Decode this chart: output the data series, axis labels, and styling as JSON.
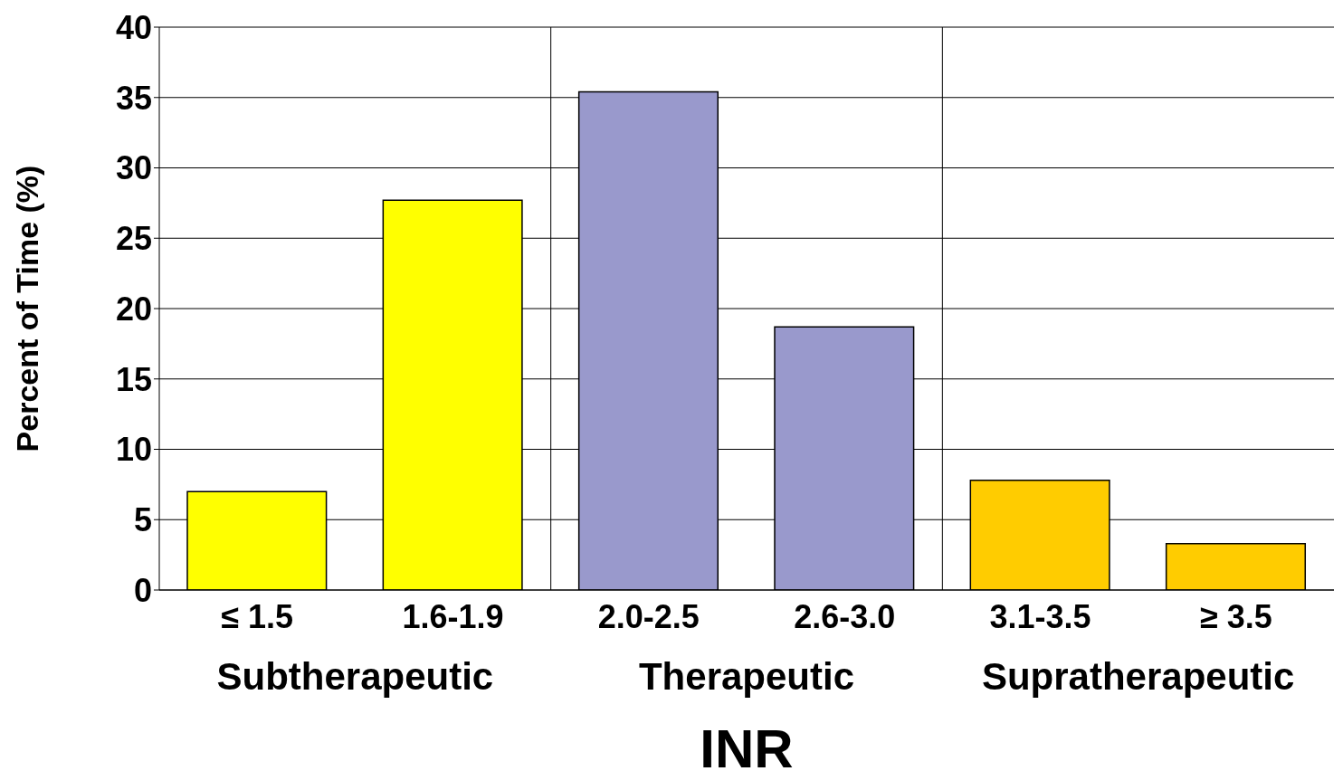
{
  "chart_data": {
    "type": "bar",
    "xlabel": "INR",
    "ylabel": "Percent of Time (%)",
    "categories": [
      "≤ 1.5",
      "1.6-1.9",
      "2.0-2.5",
      "2.6-3.0",
      "3.1-3.5",
      "≥ 3.5"
    ],
    "values": [
      7.0,
      27.7,
      35.4,
      18.7,
      7.8,
      3.3
    ],
    "colors": [
      "#ffff00",
      "#ffff00",
      "#9999cc",
      "#9999cc",
      "#ffcc00",
      "#ffcc00"
    ],
    "ylim": [
      0,
      40
    ],
    "yticks": [
      0,
      5,
      10,
      15,
      20,
      25,
      30,
      35,
      40
    ],
    "grid": "y",
    "legend": false,
    "annotations": [
      "Subtherapeutic",
      "Therapeutic",
      "Supratherapeutic"
    ]
  }
}
